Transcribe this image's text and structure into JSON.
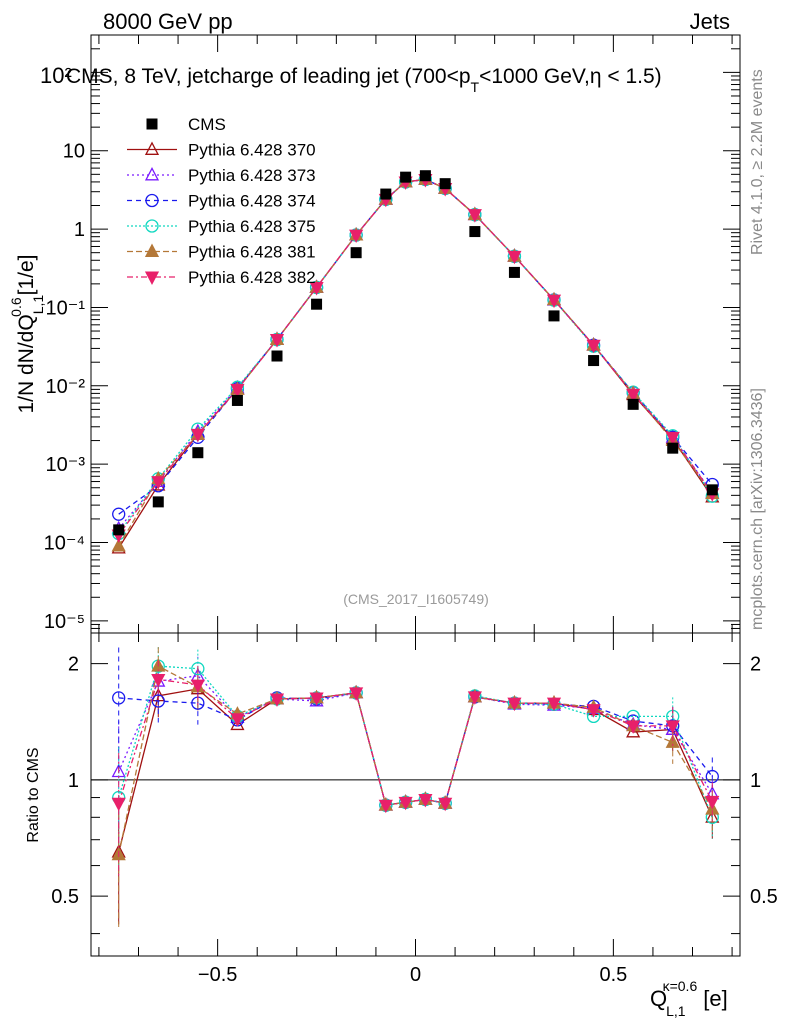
{
  "header": {
    "energy_label": "8000 GeV pp",
    "category_label": "Jets",
    "plot_title": "CMS, 8 TeV, jetcharge of leading jet (700<p",
    "plot_title_sub_t": "T",
    "plot_title_tail": "<1000 GeV,η < 1.5)",
    "title_overlap_tick": "10²"
  },
  "side_labels": {
    "rivet": "Rivet 4.1.0, ≥ 2.2M events",
    "mcplots": "mcplots.cern.ch [arXiv:1306.3436]"
  },
  "analysis_tag": "(CMS_2017_I1605749)",
  "axes": {
    "ylabel_main": "1/N dN/dQ",
    "ylabel_main_sup": "0.6",
    "ylabel_main_sub": "L,1",
    "ylabel_main_unit": "[1/e]",
    "ylabel_ratio": "Ratio to CMS",
    "xlabel": "Q",
    "xlabel_sup": "κ=0.6",
    "xlabel_sub": "L,1",
    "xlabel_unit": "[e]"
  },
  "main_ticks": {
    "ylabels": [
      {
        "v": 1e-05,
        "label": "10⁻⁵"
      },
      {
        "v": 0.0001,
        "label": "10⁻⁴"
      },
      {
        "v": 0.001,
        "label": "10⁻³"
      },
      {
        "v": 0.01,
        "label": "10⁻²"
      },
      {
        "v": 0.1,
        "label": "10⁻¹"
      },
      {
        "v": 1,
        "label": "1"
      },
      {
        "v": 10,
        "label": "10"
      }
    ]
  },
  "ratio_ticks": {
    "ylabels": [
      {
        "v": 0.5,
        "label": "0.5"
      },
      {
        "v": 1,
        "label": "1"
      },
      {
        "v": 2,
        "label": "2"
      }
    ]
  },
  "x_ticks": [
    {
      "v": -0.5,
      "label": "−0.5"
    },
    {
      "v": 0,
      "label": "0"
    },
    {
      "v": 0.5,
      "label": "0.5"
    }
  ],
  "chart_data": {
    "type": "scatter",
    "title": "CMS, 8 TeV, jetcharge of leading jet (700<pT<1000 GeV, η < 1.5)",
    "xlabel": "Q_{L,1}^{κ=0.6} [e]",
    "ylabel": "1/N dN/dQ_{L,1}^{0.6} [1/e]",
    "ratio_ylabel": "Ratio to CMS",
    "xlim": [
      -0.82,
      0.82
    ],
    "ylim": [
      7e-06,
      300
    ],
    "yscale": "log",
    "ratio_ylim": [
      0.35,
      2.4
    ],
    "ratio_yscale": "log",
    "x": [
      -0.75,
      -0.65,
      -0.55,
      -0.45,
      -0.35,
      -0.25,
      -0.15,
      -0.075,
      -0.025,
      0.025,
      0.075,
      0.15,
      0.25,
      0.35,
      0.45,
      0.55,
      0.65,
      0.75
    ],
    "data": {
      "name": "CMS",
      "values": [
        0.000145,
        0.00033,
        0.0014,
        0.0065,
        0.024,
        0.11,
        0.5,
        2.8,
        4.6,
        4.8,
        3.8,
        0.93,
        0.28,
        0.078,
        0.021,
        0.0058,
        0.0016,
        0.00047
      ]
    },
    "series": [
      {
        "name": "Pythia 6.428 370",
        "color": "#a01010",
        "dash": "",
        "marker": "triangle-open",
        "values": [
          8.5e-05,
          0.00054,
          0.0024,
          0.0091,
          0.039,
          0.18,
          0.84,
          2.4,
          4.0,
          4.3,
          3.3,
          1.53,
          0.45,
          0.125,
          0.033,
          0.0077,
          0.0021,
          0.00038
        ],
        "ratio": [
          0.65,
          1.65,
          1.72,
          1.39,
          1.62,
          1.63,
          1.68,
          0.86,
          0.875,
          0.89,
          0.87,
          1.64,
          1.58,
          1.58,
          1.52,
          1.33,
          1.35,
          0.8
        ]
      },
      {
        "name": "Pythia 6.428 373",
        "color": "#7a1aff",
        "dash": "2,3",
        "marker": "triangle-open",
        "values": [
          0.00015,
          0.0006,
          0.0026,
          0.0094,
          0.039,
          0.18,
          0.84,
          2.4,
          4.0,
          4.3,
          3.3,
          1.53,
          0.45,
          0.124,
          0.033,
          0.008,
          0.0022,
          0.00043
        ],
        "ratio": [
          1.05,
          1.8,
          1.86,
          1.45,
          1.62,
          1.6,
          1.68,
          0.86,
          0.875,
          0.89,
          0.87,
          1.64,
          1.57,
          1.56,
          1.53,
          1.39,
          1.35,
          0.92
        ]
      },
      {
        "name": "Pythia 6.428 374",
        "color": "#1a1aee",
        "dash": "5,4",
        "marker": "circle-open",
        "values": [
          0.00023,
          0.00053,
          0.0022,
          0.0092,
          0.039,
          0.18,
          0.84,
          2.4,
          4.0,
          4.3,
          3.3,
          1.53,
          0.45,
          0.125,
          0.033,
          0.0082,
          0.0022,
          0.00055
        ],
        "ratio": [
          1.63,
          1.6,
          1.58,
          1.43,
          1.63,
          1.62,
          1.68,
          0.86,
          0.875,
          0.89,
          0.87,
          1.64,
          1.58,
          1.57,
          1.55,
          1.42,
          1.38,
          1.02
        ]
      },
      {
        "name": "Pythia 6.428 375",
        "color": "#10d8c0",
        "dash": "2,2",
        "marker": "circle-open",
        "values": [
          0.00013,
          0.00065,
          0.0028,
          0.0096,
          0.039,
          0.18,
          0.84,
          2.4,
          4.0,
          4.3,
          3.3,
          1.53,
          0.45,
          0.124,
          0.032,
          0.0083,
          0.0023,
          0.00039
        ],
        "ratio": [
          0.9,
          1.97,
          1.94,
          1.46,
          1.62,
          1.63,
          1.68,
          0.86,
          0.875,
          0.89,
          0.87,
          1.65,
          1.58,
          1.57,
          1.46,
          1.46,
          1.46,
          0.8
        ]
      },
      {
        "name": "Pythia 6.428 381",
        "color": "#b47838",
        "dash": "6,3",
        "marker": "triangle-filled",
        "values": [
          9e-05,
          0.00065,
          0.0024,
          0.009,
          0.039,
          0.18,
          0.84,
          2.4,
          4.0,
          4.3,
          3.3,
          1.53,
          0.45,
          0.125,
          0.033,
          0.008,
          0.002,
          0.00042
        ],
        "ratio": [
          0.64,
          1.97,
          1.74,
          1.48,
          1.62,
          1.63,
          1.68,
          0.86,
          0.875,
          0.89,
          0.87,
          1.64,
          1.58,
          1.58,
          1.54,
          1.38,
          1.25,
          0.84
        ]
      },
      {
        "name": "Pythia 6.428 382",
        "color": "#e8206a",
        "dash": "6,3,2,3",
        "marker": "triangle-down-filled",
        "values": [
          0.000125,
          0.0006,
          0.0024,
          0.009,
          0.039,
          0.18,
          0.84,
          2.4,
          4.0,
          4.3,
          3.3,
          1.53,
          0.45,
          0.124,
          0.033,
          0.0078,
          0.0022,
          0.00042
        ],
        "ratio": [
          0.87,
          1.82,
          1.76,
          1.44,
          1.62,
          1.63,
          1.68,
          0.86,
          0.875,
          0.89,
          0.87,
          1.64,
          1.58,
          1.58,
          1.52,
          1.38,
          1.38,
          0.88
        ]
      }
    ]
  }
}
